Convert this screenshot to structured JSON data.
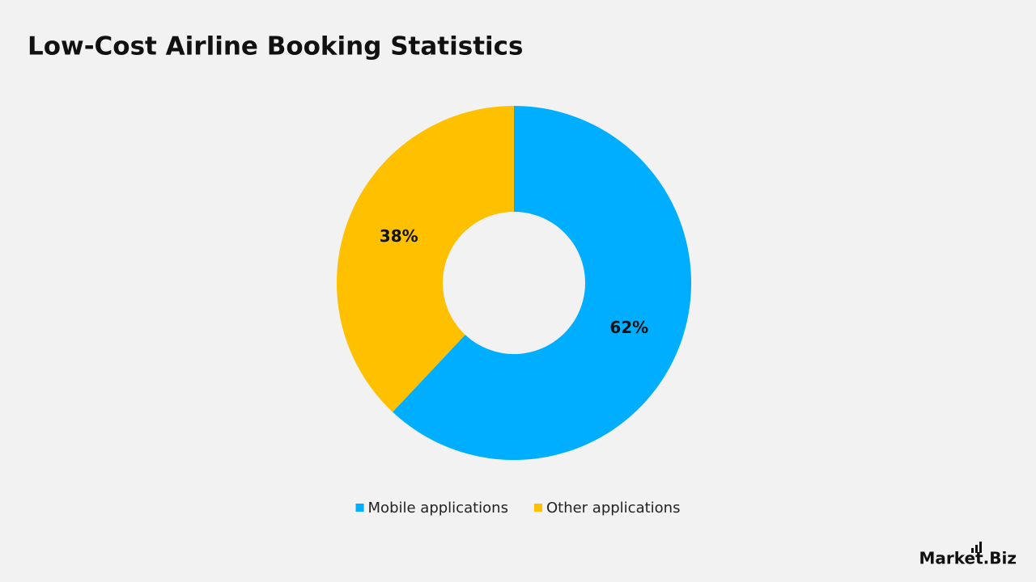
{
  "chart_data": {
    "type": "donut",
    "title": "Low-Cost Airline Booking Statistics",
    "series": [
      {
        "name": "Mobile applications",
        "color": "#00aeff",
        "values": [
          62
        ],
        "value_labels": [
          "62%"
        ]
      },
      {
        "name": "Other applications",
        "color": "#ffc000",
        "values": [
          38
        ],
        "value_labels": [
          "38%"
        ]
      }
    ]
  },
  "brand": "Market.Biz"
}
